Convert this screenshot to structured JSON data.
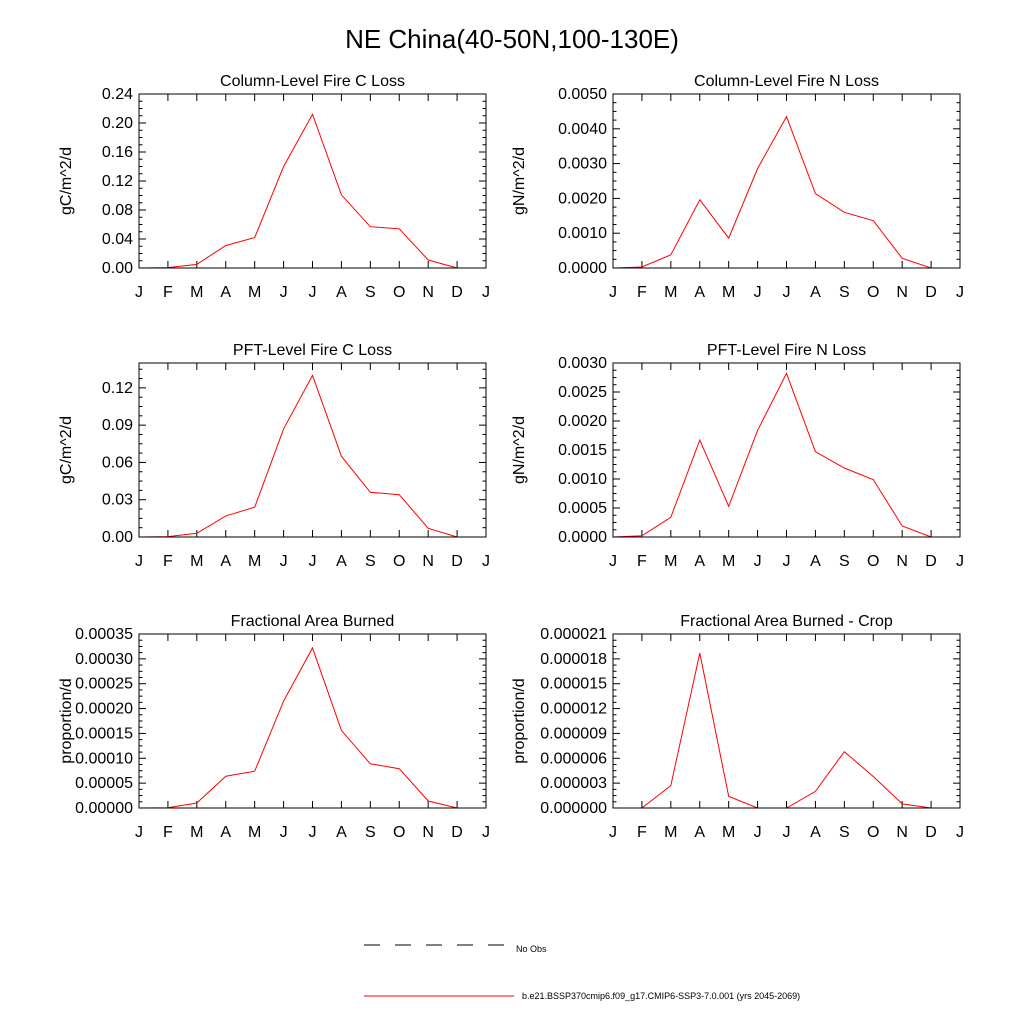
{
  "figure": {
    "title": "NE China(40-50N,100-130E)"
  },
  "legend": {
    "obs_label": "No Obs",
    "model_label": "b.e21.BSSP370cmip6.f09_g17.CMIP6-SSP3-7.0.001 (yrs 2045-2069)",
    "obs_color": "#000000",
    "model_color": "#ff0000"
  },
  "chart_data": [
    {
      "type": "line",
      "title": "Column-Level Fire C Loss",
      "xlabel": "",
      "ylabel": "gC/m^2/d",
      "x": [
        "J",
        "F",
        "M",
        "A",
        "M",
        "J",
        "J",
        "A",
        "S",
        "O",
        "N",
        "D",
        "J"
      ],
      "ylim": [
        0,
        0.24
      ],
      "yticks": [
        "0.00",
        "0.04",
        "0.08",
        "0.12",
        "0.16",
        "0.20",
        "0.24"
      ],
      "series": [
        {
          "values": [
            0.0,
            0.0005,
            0.005,
            0.031,
            0.042,
            0.14,
            0.212,
            0.101,
            0.057,
            0.054,
            0.011,
            0.0,
            0.0
          ]
        }
      ]
    },
    {
      "type": "line",
      "title": "Column-Level Fire N Loss",
      "xlabel": "",
      "ylabel": "gN/m^2/d",
      "x": [
        "J",
        "F",
        "M",
        "A",
        "M",
        "J",
        "J",
        "A",
        "S",
        "O",
        "N",
        "D",
        "J"
      ],
      "ylim": [
        0,
        0.005
      ],
      "yticks": [
        "0.0000",
        "0.0010",
        "0.0020",
        "0.0030",
        "0.0040",
        "0.0050"
      ],
      "series": [
        {
          "values": [
            0.0,
            3e-05,
            0.00038,
            0.00196,
            0.00086,
            0.00286,
            0.00435,
            0.00214,
            0.0016,
            0.00136,
            0.00028,
            0.0,
            0.0
          ]
        }
      ]
    },
    {
      "type": "line",
      "title": "PFT-Level Fire C Loss",
      "xlabel": "",
      "ylabel": "gC/m^2/d",
      "x": [
        "J",
        "F",
        "M",
        "A",
        "M",
        "J",
        "J",
        "A",
        "S",
        "O",
        "N",
        "D",
        "J"
      ],
      "ylim": [
        0,
        0.14
      ],
      "yticks": [
        "0.00",
        "0.03",
        "0.06",
        "0.09",
        "0.12"
      ],
      "series": [
        {
          "values": [
            0.0,
            0.0003,
            0.003,
            0.017,
            0.024,
            0.087,
            0.13,
            0.065,
            0.036,
            0.034,
            0.007,
            0.0,
            0.0
          ]
        }
      ]
    },
    {
      "type": "line",
      "title": "PFT-Level Fire N Loss",
      "xlabel": "",
      "ylabel": "gN/m^2/d",
      "x": [
        "J",
        "F",
        "M",
        "A",
        "M",
        "J",
        "J",
        "A",
        "S",
        "O",
        "N",
        "D",
        "J"
      ],
      "ylim": [
        0,
        0.003
      ],
      "yticks": [
        "0.0000",
        "0.0005",
        "0.0010",
        "0.0015",
        "0.0020",
        "0.0025",
        "0.0030"
      ],
      "series": [
        {
          "values": [
            0.0,
            2e-05,
            0.00034,
            0.00167,
            0.00053,
            0.00184,
            0.00282,
            0.00147,
            0.00119,
            0.00099,
            0.00019,
            0.0,
            0.0
          ]
        }
      ]
    },
    {
      "type": "line",
      "title": "Fractional Area Burned",
      "xlabel": "",
      "ylabel": "proportion/d",
      "x": [
        "J",
        "F",
        "M",
        "A",
        "M",
        "J",
        "J",
        "A",
        "S",
        "O",
        "N",
        "D",
        "J"
      ],
      "ylim": [
        0,
        0.00035
      ],
      "yticks": [
        "0.00000",
        "0.00005",
        "0.00010",
        "0.00015",
        "0.00020",
        "0.00025",
        "0.00030",
        "0.00035"
      ],
      "series": [
        {
          "values": [
            0.0,
            5e-07,
            1e-05,
            6.4e-05,
            7.4e-05,
            0.000215,
            0.000322,
            0.000156,
            8.9e-05,
            7.9e-05,
            1.4e-05,
            0.0,
            0.0
          ]
        }
      ]
    },
    {
      "type": "line",
      "title": "Fractional Area Burned - Crop",
      "xlabel": "",
      "ylabel": "proportion/d",
      "x": [
        "J",
        "F",
        "M",
        "A",
        "M",
        "J",
        "J",
        "A",
        "S",
        "O",
        "N",
        "D",
        "J"
      ],
      "ylim": [
        0,
        2.1e-05
      ],
      "yticks": [
        "0.000000",
        "0.000003",
        "0.000006",
        "0.000009",
        "0.000012",
        "0.000015",
        "0.000018",
        "0.000021"
      ],
      "series": [
        {
          "values": [
            0.0,
            0.0,
            2.7e-06,
            1.87e-05,
            1.4e-06,
            0.0,
            0.0,
            2e-06,
            6.8e-06,
            3.8e-06,
            5e-07,
            0.0,
            0.0
          ]
        }
      ]
    }
  ]
}
